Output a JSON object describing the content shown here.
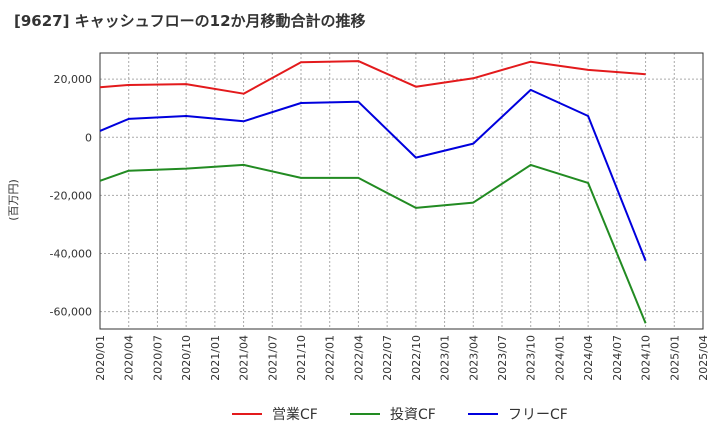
{
  "chart_data": {
    "type": "line",
    "title": "[9627]  キャッシュフローの12か月移動合計の推移",
    "ylabel": "(百万円)",
    "xlabel": "",
    "ylim": [
      -66000,
      29000
    ],
    "grid": true,
    "legend_position": "bottom",
    "x": [
      "2020/01",
      "2020/04",
      "2020/07",
      "2020/10",
      "2021/01",
      "2021/04",
      "2021/07",
      "2021/10",
      "2022/01",
      "2022/04",
      "2022/07",
      "2022/10",
      "2023/01",
      "2023/04",
      "2023/07",
      "2023/10",
      "2024/01",
      "2024/04",
      "2024/07",
      "2024/10",
      "2025/01",
      "2025/04"
    ],
    "yticks": [
      20000,
      0,
      -20000,
      -40000,
      -60000
    ],
    "ytick_labels": [
      "20,000",
      "0",
      "-20,000",
      "-40,000",
      "-60,000"
    ],
    "series": [
      {
        "name": "営業CF",
        "color": "#e31a1c",
        "values": [
          17200,
          18000,
          null,
          18300,
          null,
          15000,
          null,
          25800,
          null,
          26200,
          null,
          17400,
          null,
          20300,
          null,
          26000,
          null,
          23200,
          null,
          21700,
          null,
          null
        ]
      },
      {
        "name": "投資CF",
        "color": "#228b22",
        "values": [
          -15000,
          -11500,
          null,
          -10800,
          null,
          -9500,
          null,
          -14000,
          null,
          -14000,
          null,
          -24300,
          null,
          -22500,
          null,
          -9500,
          null,
          -15700,
          null,
          -64000,
          null,
          null
        ]
      },
      {
        "name": "フリーCF",
        "color": "#0000dd",
        "values": [
          2200,
          6300,
          null,
          7300,
          null,
          5500,
          null,
          11800,
          null,
          12200,
          null,
          -7000,
          null,
          -2200,
          null,
          16300,
          null,
          7300,
          null,
          -42500,
          null,
          null
        ]
      }
    ]
  }
}
